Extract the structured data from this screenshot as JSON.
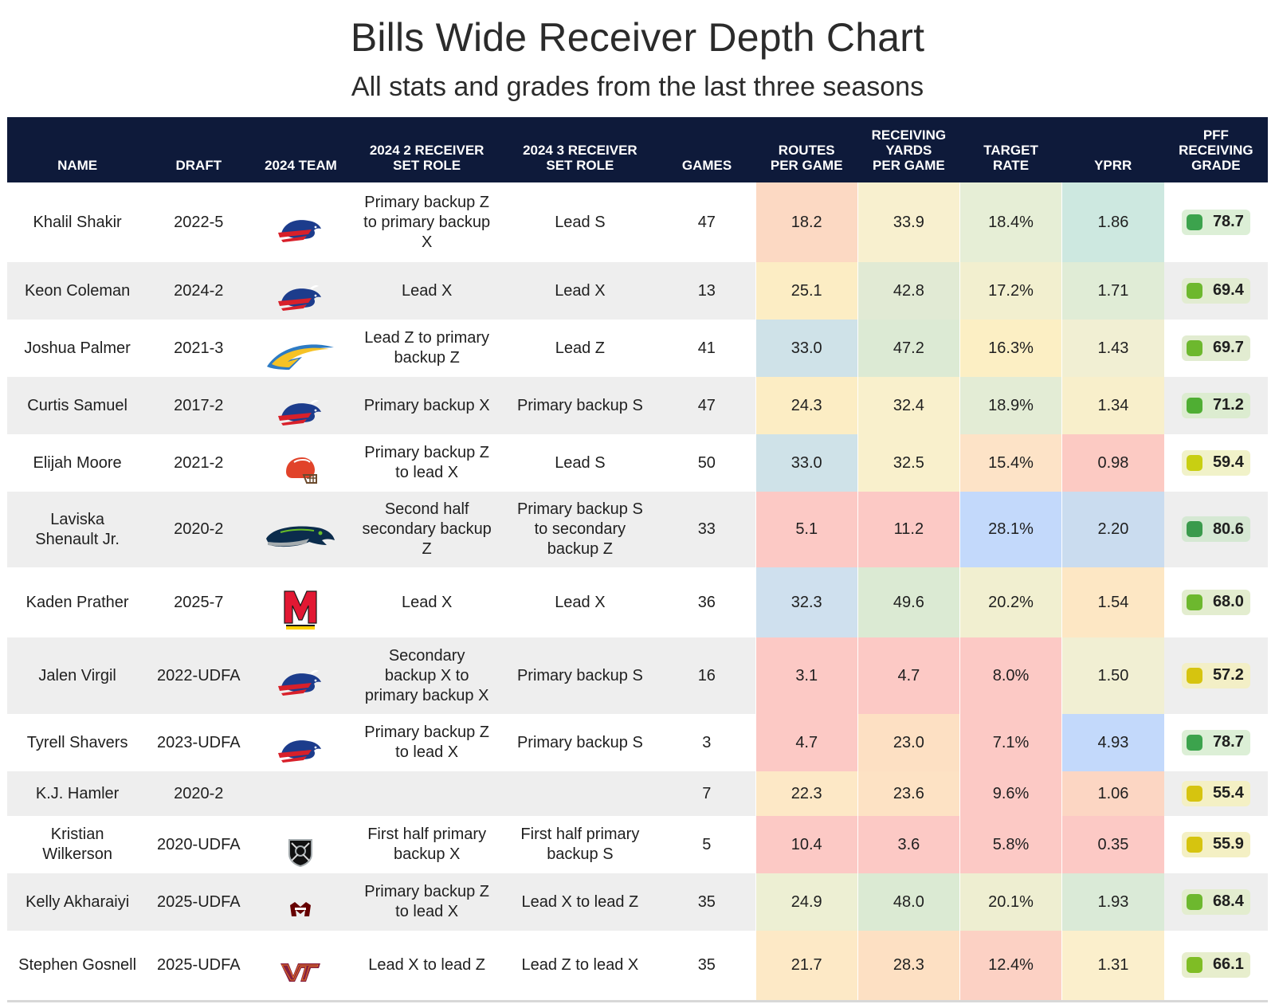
{
  "title": "Bills Wide Receiver Depth Chart",
  "subtitle": "All stats and grades from the last three seasons",
  "columns": {
    "name": "NAME",
    "draft": "DRAFT",
    "team": "2024 TEAM",
    "role2": "2024 2 RECEIVER\nSET ROLE",
    "role3": "2024 3 RECEIVER\nSET ROLE",
    "games": "GAMES",
    "routes": "ROUTES\nPER GAME",
    "yards": "RECEIVING\nYARDS\nPER GAME",
    "target": "TARGET\nRATE",
    "yprr": "YPRR",
    "grade": "PFF\nRECEIVING\nGRADE"
  },
  "colors": {
    "header_bg": "#0e1a3a",
    "red": "#fcc9c5",
    "orange": "#fde3c7",
    "yellow": "#fcefc4",
    "cream": "#f1f0d3",
    "lightgreen": "#e1eed7",
    "teal": "#cce7e2",
    "steel": "#cfe1e8",
    "blue": "#c8dcf4",
    "bluedeep": "#c3d9fb",
    "grade_green_dark": "#3ca34d",
    "grade_green": "#6db82e",
    "grade_yellow": "#c8cf12",
    "grade_yellow_warm": "#d6c40f"
  },
  "chart_data": {
    "type": "table",
    "title": "Bills Wide Receiver Depth Chart",
    "subtitle": "All stats and grades from the last three seasons",
    "rows": [
      {
        "name": "Khalil Shakir",
        "draft": "2022-5",
        "team_logo": "buffalo-bills-logo",
        "role2": "Primary backup Z\nto primary backup\nX",
        "role3": "Lead S",
        "games": "47",
        "routes": "18.2",
        "yards": "33.9",
        "target": "18.4%",
        "yprr": "1.86",
        "grade": "78.7",
        "c_routes": "#fcd9c3",
        "c_yards": "#f8f0cf",
        "c_target": "#e6eed6",
        "c_yprr": "#cde8e0",
        "grade_bg": "#dcefd6",
        "grade_dot": "#3ca34d"
      },
      {
        "name": "Keon Coleman",
        "draft": "2024-2",
        "team_logo": "buffalo-bills-logo",
        "role2": "Lead X",
        "role3": "Lead X",
        "games": "13",
        "routes": "25.1",
        "yards": "42.8",
        "target": "17.2%",
        "yprr": "1.71",
        "grade": "69.4",
        "c_routes": "#fcedc4",
        "c_yards": "#e1ead4",
        "c_target": "#f2efcf",
        "c_yprr": "#e0ecd6",
        "grade_bg": "#e2ecd1",
        "grade_dot": "#6db82e"
      },
      {
        "name": "Joshua Palmer",
        "draft": "2021-3",
        "team_logo": "chargers-bolt-logo",
        "role2": "Lead Z to primary\nbackup Z",
        "role3": "Lead Z",
        "games": "41",
        "routes": "33.0",
        "yards": "47.2",
        "target": "16.3%",
        "yprr": "1.43",
        "grade": "69.7",
        "c_routes": "#cfe2e8",
        "c_yards": "#dcead4",
        "c_target": "#fcefc4",
        "c_yprr": "#f1efd3",
        "grade_bg": "#e2ecd1",
        "grade_dot": "#6db82e"
      },
      {
        "name": "Curtis Samuel",
        "draft": "2017-2",
        "team_logo": "buffalo-bills-logo",
        "role2": "Primary backup X",
        "role3": "Primary backup S",
        "games": "47",
        "routes": "24.3",
        "yards": "32.4",
        "target": "18.9%",
        "yprr": "1.34",
        "grade": "71.2",
        "c_routes": "#fcedc4",
        "c_yards": "#f9f0cc",
        "c_target": "#e3ecd5",
        "c_yprr": "#f8efcb",
        "grade_bg": "#dcecd0",
        "grade_dot": "#4fae33"
      },
      {
        "name": "Elijah Moore",
        "draft": "2021-2",
        "team_logo": "cleveland-browns-helmet-logo",
        "role2": "Primary backup Z\nto lead X",
        "role3": "Lead S",
        "games": "50",
        "routes": "33.0",
        "yards": "32.5",
        "target": "15.4%",
        "yprr": "0.98",
        "grade": "59.4",
        "c_routes": "#cfe2e8",
        "c_yards": "#f9f0cc",
        "c_target": "#fde3c7",
        "c_yprr": "#fccac3",
        "grade_bg": "#f1f2c9",
        "grade_dot": "#c8cf12"
      },
      {
        "name": "Laviska\nShenault Jr.",
        "draft": "2020-2",
        "team_logo": "seattle-seahawks-logo",
        "role2": "Second half\nsecondary backup\nZ",
        "role3": "Primary backup S\nto secondary\nbackup Z",
        "games": "33",
        "routes": "5.1",
        "yards": "11.2",
        "target": "28.1%",
        "yprr": "2.20",
        "grade": "80.6",
        "c_routes": "#fcc9c5",
        "c_yards": "#fcc9c5",
        "c_target": "#c3d9fb",
        "c_yprr": "#cadcef",
        "grade_bg": "#d5e8d3",
        "grade_dot": "#3a9a4c"
      },
      {
        "name": "Kaden Prather",
        "draft": "2025-7",
        "team_logo": "maryland-terrapins-logo",
        "role2": "Lead X",
        "role3": "Lead X",
        "games": "36",
        "routes": "32.3",
        "yards": "49.6",
        "target": "20.2%",
        "yprr": "1.54",
        "grade": "68.0",
        "c_routes": "#cfe0ee",
        "c_yards": "#dbead3",
        "c_target": "#f1efd0",
        "c_yprr": "#fde7c4",
        "grade_bg": "#e3edcf",
        "grade_dot": "#6db82e"
      },
      {
        "name": "Jalen Virgil",
        "draft": "2022-UDFA",
        "team_logo": "buffalo-bills-logo",
        "role2": "Secondary\nbackup X to\nprimary backup X",
        "role3": "Primary backup S",
        "games": "16",
        "routes": "3.1",
        "yards": "4.7",
        "target": "8.0%",
        "yprr": "1.50",
        "grade": "57.2",
        "c_routes": "#fcc9c5",
        "c_yards": "#fcc9c5",
        "c_target": "#fcc9c5",
        "c_yprr": "#f1efd3",
        "grade_bg": "#f3efc6",
        "grade_dot": "#d6c40f"
      },
      {
        "name": "Tyrell Shavers",
        "draft": "2023-UDFA",
        "team_logo": "buffalo-bills-logo",
        "role2": "Primary backup Z\nto lead X",
        "role3": "Primary backup S",
        "games": "3",
        "routes": "4.7",
        "yards": "23.0",
        "target": "7.1%",
        "yprr": "4.93",
        "grade": "78.7",
        "c_routes": "#fcc9c5",
        "c_yards": "#fde0c3",
        "c_target": "#fcc9c5",
        "c_yprr": "#c3d9fb",
        "grade_bg": "#dcefd6",
        "grade_dot": "#3ca34d"
      },
      {
        "name": "K.J. Hamler",
        "draft": "2020-2",
        "team_logo": "",
        "role2": "",
        "role3": "",
        "games": "7",
        "routes": "22.3",
        "yards": "23.6",
        "target": "9.6%",
        "yprr": "1.06",
        "grade": "55.4",
        "c_routes": "#fde8c6",
        "c_yards": "#fde2c4",
        "c_target": "#fcc9c5",
        "c_yprr": "#fcd6c3",
        "grade_bg": "#f4f0c4",
        "grade_dot": "#d6c40f"
      },
      {
        "name": "Kristian\nWilkerson",
        "draft": "2020-UDFA",
        "team_logo": "las-vegas-raiders-logo",
        "role2": "First half primary\nbackup X",
        "role3": "First half primary\nbackup S",
        "games": "5",
        "routes": "10.4",
        "yards": "3.6",
        "target": "5.8%",
        "yprr": "0.35",
        "grade": "55.9",
        "c_routes": "#fcc9c5",
        "c_yards": "#fcc9c5",
        "c_target": "#fcc9c5",
        "c_yprr": "#fcc9c5",
        "grade_bg": "#f4f0c4",
        "grade_dot": "#d6c40f"
      },
      {
        "name": "Kelly Akharaiyi",
        "draft": "2025-UDFA",
        "team_logo": "mississippi-state-logo",
        "role2": "Primary backup Z\nto lead X",
        "role3": "Lead X to lead Z",
        "games": "35",
        "routes": "24.9",
        "yards": "48.0",
        "target": "20.1%",
        "yprr": "1.93",
        "grade": "68.4",
        "c_routes": "#edefd3",
        "c_yards": "#dbead3",
        "c_target": "#eeeed1",
        "c_yprr": "#daead7",
        "grade_bg": "#e3edcf",
        "grade_dot": "#6db82e"
      },
      {
        "name": "Stephen Gosnell",
        "draft": "2025-UDFA",
        "team_logo": "virginia-tech-logo",
        "role2": "Lead X to lead Z",
        "role3": "Lead Z to lead X",
        "games": "35",
        "routes": "21.7",
        "yards": "28.3",
        "target": "12.4%",
        "yprr": "1.31",
        "grade": "66.1",
        "c_routes": "#fde9c6",
        "c_yards": "#fde0c3",
        "c_target": "#fcd1c4",
        "c_yprr": "#fbefcc",
        "grade_bg": "#e7eecd",
        "grade_dot": "#7fbd25"
      }
    ]
  }
}
